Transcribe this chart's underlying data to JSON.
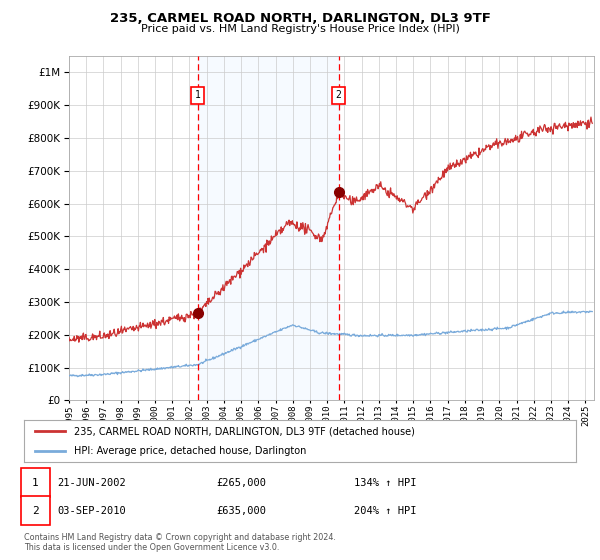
{
  "title": "235, CARMEL ROAD NORTH, DARLINGTON, DL3 9TF",
  "subtitle": "Price paid vs. HM Land Registry's House Price Index (HPI)",
  "legend_line1": "235, CARMEL ROAD NORTH, DARLINGTON, DL3 9TF (detached house)",
  "legend_line2": "HPI: Average price, detached house, Darlington",
  "annotation1_label": "1",
  "annotation1_date": "21-JUN-2002",
  "annotation1_price": 265000,
  "annotation1_price_str": "£265,000",
  "annotation1_hpi": "134% ↑ HPI",
  "annotation1_year": 2002.47,
  "annotation2_label": "2",
  "annotation2_date": "03-SEP-2010",
  "annotation2_price": 635000,
  "annotation2_price_str": "£635,000",
  "annotation2_hpi": "204% ↑ HPI",
  "annotation2_year": 2010.67,
  "hpi_color": "#7aabdb",
  "price_color": "#cc3333",
  "dot_color": "#880000",
  "shading_color": "#ddeeff",
  "grid_color": "#cccccc",
  "bg_color": "#ffffff",
  "footer_line1": "Contains HM Land Registry data © Crown copyright and database right 2024.",
  "footer_line2": "This data is licensed under the Open Government Licence v3.0.",
  "ylim_max": 1050000,
  "xmin": 1995.0,
  "xmax": 2025.5,
  "yticks": [
    0,
    100000,
    200000,
    300000,
    400000,
    500000,
    600000,
    700000,
    800000,
    900000,
    1000000
  ],
  "xticks": [
    1995,
    1996,
    1997,
    1998,
    1999,
    2000,
    2001,
    2002,
    2003,
    2004,
    2005,
    2006,
    2007,
    2008,
    2009,
    2010,
    2011,
    2012,
    2013,
    2014,
    2015,
    2016,
    2017,
    2018,
    2019,
    2020,
    2021,
    2022,
    2023,
    2024,
    2025
  ]
}
